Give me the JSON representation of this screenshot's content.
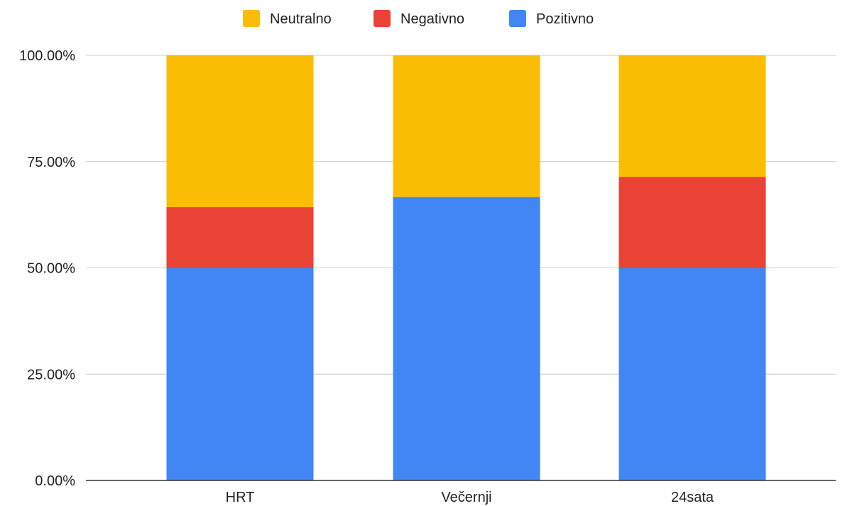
{
  "chart_data": {
    "type": "bar",
    "stacked": true,
    "categories": [
      "HRT",
      "Večernji",
      "24sata"
    ],
    "series": [
      {
        "name": "Pozitivno",
        "color": "#4285f4",
        "values": [
          50.0,
          66.67,
          50.0
        ]
      },
      {
        "name": "Negativno",
        "color": "#ea4335",
        "values": [
          14.29,
          0.0,
          21.43
        ]
      },
      {
        "name": "Neutralno",
        "color": "#fbbc04",
        "values": [
          35.71,
          33.33,
          28.57
        ]
      }
    ],
    "legend": {
      "position": "top-center",
      "order": [
        "Neutralno",
        "Negativno",
        "Pozitivno"
      ]
    },
    "y_ticks": [
      "0.00%",
      "25.00%",
      "50.00%",
      "75.00%",
      "100.00%"
    ],
    "y_tick_values": [
      0,
      25,
      50,
      75,
      100
    ],
    "ylim": [
      0,
      100
    ],
    "grid": true,
    "title": "",
    "xlabel": "",
    "ylabel": ""
  }
}
